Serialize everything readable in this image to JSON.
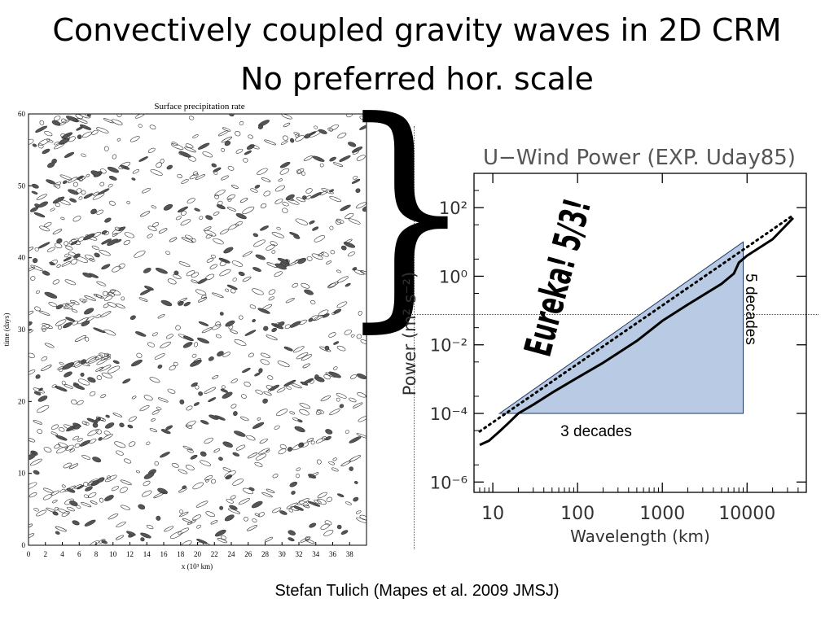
{
  "slide": {
    "title_line1": "Convectively coupled gravity waves in 2D CRM",
    "title_line2": "No preferred hor. scale",
    "credit": "Stefan Tulich (Mapes et al. 2009 JMSJ)"
  },
  "chart_data": [
    {
      "type": "heatmap",
      "title": "Surface precipitation rate",
      "xlabel": "x (10³ km)",
      "ylabel": "time (days)",
      "xlim": [
        0,
        40
      ],
      "ylim": [
        0,
        60
      ],
      "x_ticks": [
        "0",
        "2",
        "4",
        "6",
        "8",
        "10",
        "12",
        "14",
        "16",
        "18",
        "20",
        "22",
        "24",
        "26",
        "28",
        "30",
        "32",
        "34",
        "36",
        "38"
      ],
      "y_ticks": [
        "0",
        "10",
        "20",
        "30",
        "40",
        "50",
        "60"
      ],
      "pattern": "contoured streaks tilted in time-space"
    },
    {
      "type": "line",
      "title": "U−Wind Power (EXP. Uday85)",
      "xlabel": "Wavelength (km)",
      "ylabel": "Power (m² s⁻²)",
      "x_scale": "log",
      "y_scale": "log",
      "xlim": [
        6,
        50000
      ],
      "ylim": [
        5e-07,
        1000
      ],
      "x_ticks": [
        "10",
        "100",
        "1000",
        "10000"
      ],
      "y_ticks": [
        "10²",
        "10⁰",
        "10⁻²",
        "10⁻⁴",
        "10⁻⁶"
      ],
      "series": [
        {
          "style": "solid",
          "x": [
            7,
            9,
            12,
            15,
            20,
            30,
            50,
            100,
            200,
            500,
            1000,
            2000,
            5000,
            7000,
            8000,
            10000,
            20000,
            35000
          ],
          "y": [
            1.2e-05,
            1.6e-05,
            3e-05,
            5e-05,
            0.0001,
            0.00018,
            0.0004,
            0.0011,
            0.003,
            0.013,
            0.05,
            0.15,
            0.6,
            1.2,
            2.5,
            4,
            12,
            50
          ]
        },
        {
          "style": "dotted",
          "x": [
            7,
            35000
          ],
          "y": [
            3e-05,
            60
          ]
        }
      ],
      "annotations": {
        "slope_label": "Eureka! 5/3!",
        "horizontal_leg": "3 decades",
        "vertical_leg": "5 decades"
      },
      "triangle": {
        "x": [
          12,
          9000,
          9000
        ],
        "y": [
          0.0001,
          0.0001,
          10
        ]
      },
      "colors": {
        "triangle_fill": "#b9cbe4",
        "triangle_stroke": "#1f3a66"
      }
    }
  ]
}
